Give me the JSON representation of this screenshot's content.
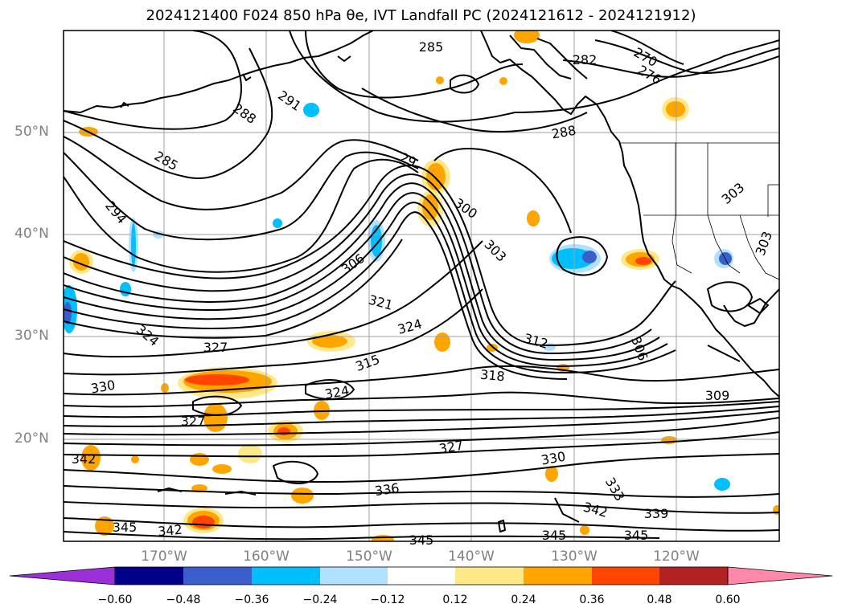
{
  "title": "2024121400 F024 850 hPa θe, IVT Landfall PC (2024121612 - 2024121912)",
  "map": {
    "lat_labels": [
      "50°N",
      "40°N",
      "30°N",
      "20°N"
    ],
    "lon_labels": [
      "170°W",
      "160°W",
      "150°W",
      "140°W",
      "130°W",
      "120°W"
    ],
    "contour_labels": [
      "285",
      "282",
      "270",
      "276",
      "291",
      "288",
      "288",
      "285",
      "29",
      "294",
      "300",
      "303",
      "303",
      "303",
      "306",
      "321",
      "324",
      "327",
      "312",
      "306",
      "330",
      "315",
      "318",
      "324",
      "309",
      "327",
      "342",
      "327",
      "330",
      "333",
      "336",
      "342",
      "339",
      "345",
      "342",
      "345",
      "345",
      "345",
      "324"
    ],
    "colorbar": {
      "ticks": [
        "−0.60",
        "−0.48",
        "−0.36",
        "−0.24",
        "−0.12",
        "0.12",
        "0.24",
        "0.36",
        "0.48",
        "0.60"
      ],
      "colors": [
        "#9b30d9",
        "#00008b",
        "#3a5fcd",
        "#00bfff",
        "#b0e2ff",
        "#ffffff",
        "#ffe88a",
        "#ffa500",
        "#ff4500",
        "#b22222",
        "#ff88aa"
      ]
    }
  }
}
